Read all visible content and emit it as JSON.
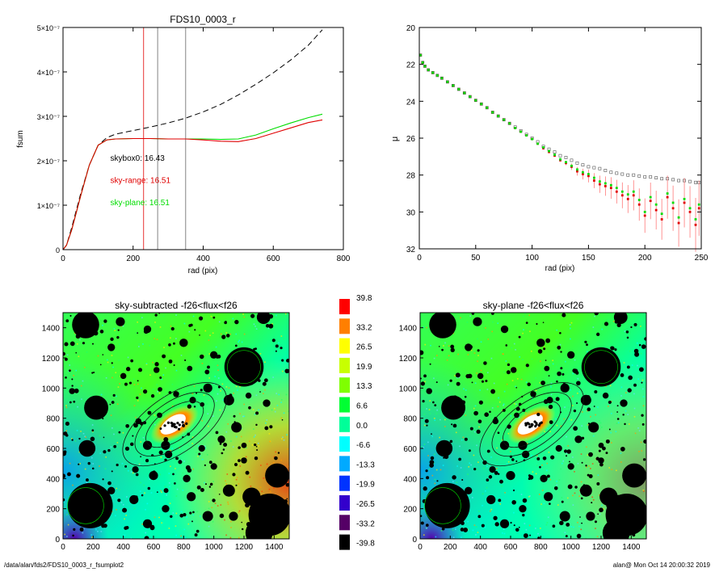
{
  "footer": {
    "path": "/data/alan/fds2/FDS10_0003_r_fsumplot2",
    "stamp": "alan@  Mon Oct 14 20:00:32 2019"
  },
  "colors": {
    "dashed": "#000000",
    "sky_range": "#e00000",
    "sky_plane": "#00dd00",
    "curve": "#8a5a00",
    "skybox_marker": "#666666",
    "blob": "#000000"
  },
  "chart_data": [
    {
      "type": "line",
      "title": "FDS10_0003_r",
      "xlabel": "rad (pix)",
      "ylabel": "fsum",
      "xlim": [
        0,
        800
      ],
      "ylim": [
        0,
        5e-07
      ],
      "xticks": [
        0,
        200,
        400,
        600,
        800
      ],
      "yticks": [
        {
          "v": 0,
          "label": "0"
        },
        {
          "v": 1e-07,
          "label": "1×10⁻⁷"
        },
        {
          "v": 2e-07,
          "label": "2×10⁻⁷"
        },
        {
          "v": 3e-07,
          "label": "3×10⁻⁷"
        },
        {
          "v": 4e-07,
          "label": "4×10⁻⁷"
        },
        {
          "v": 5e-07,
          "label": "5×10⁻⁷"
        }
      ],
      "vlines": [
        {
          "x": 230,
          "color": "red"
        },
        {
          "x": 270,
          "color": "gray"
        },
        {
          "x": 350,
          "color": "gray"
        }
      ],
      "annotations": [
        {
          "text": "skybox0: 16.43",
          "color": "black",
          "x": 135,
          "y": 2e-07
        },
        {
          "text": "sky-range: 16.51",
          "color": "red",
          "x": 135,
          "y": 1.5e-07
        },
        {
          "text": "sky-plane: 16.51",
          "color": "green",
          "x": 135,
          "y": 1e-07
        }
      ],
      "series": [
        {
          "style": "dashed",
          "x": [
            0,
            10,
            25,
            50,
            75,
            100,
            125,
            150,
            200,
            250,
            300,
            350,
            400,
            450,
            500,
            550,
            600,
            650,
            700,
            740
          ],
          "y": [
            0,
            1e-08,
            5e-08,
            1.25e-07,
            1.9e-07,
            2.35e-07,
            2.52e-07,
            2.6e-07,
            2.68e-07,
            2.76e-07,
            2.85e-07,
            2.96e-07,
            3.1e-07,
            3.27e-07,
            3.48e-07,
            3.72e-07,
            3.98e-07,
            4.27e-07,
            4.6e-07,
            4.95e-07
          ]
        },
        {
          "style": "sky_plane",
          "x": [
            0,
            10,
            25,
            50,
            75,
            100,
            125,
            150,
            200,
            250,
            300,
            350,
            400,
            450,
            500,
            550,
            600,
            650,
            700,
            740
          ],
          "y": [
            0,
            1e-08,
            4.5e-08,
            1.2e-07,
            1.9e-07,
            2.35e-07,
            2.47e-07,
            2.49e-07,
            2.5e-07,
            2.5e-07,
            2.49e-07,
            2.49e-07,
            2.49e-07,
            2.48e-07,
            2.49e-07,
            2.58e-07,
            2.72e-07,
            2.85e-07,
            2.97e-07,
            3.05e-07
          ]
        },
        {
          "style": "sky_range",
          "x": [
            0,
            10,
            25,
            50,
            75,
            100,
            125,
            150,
            200,
            250,
            300,
            350,
            400,
            450,
            500,
            550,
            600,
            650,
            700,
            740
          ],
          "y": [
            0,
            1e-08,
            4.5e-08,
            1.2e-07,
            1.9e-07,
            2.35e-07,
            2.47e-07,
            2.49e-07,
            2.5e-07,
            2.5e-07,
            2.49e-07,
            2.49e-07,
            2.47e-07,
            2.44e-07,
            2.43e-07,
            2.5e-07,
            2.62e-07,
            2.74e-07,
            2.86e-07,
            2.92e-07
          ]
        }
      ]
    },
    {
      "type": "scatter",
      "xlabel": "rad (pix)",
      "ylabel": "μ",
      "xlim": [
        0,
        250
      ],
      "ylim": [
        32,
        20
      ],
      "xticks": [
        0,
        50,
        100,
        150,
        200,
        250
      ],
      "yticks": [
        20,
        22,
        24,
        26,
        28,
        30,
        32
      ],
      "series": [
        {
          "name": "",
          "color": "gray",
          "x": [
            1,
            3,
            5,
            8,
            12,
            16,
            20,
            25,
            30,
            35,
            40,
            45,
            50,
            55,
            60,
            65,
            70,
            75,
            80,
            85,
            90,
            95,
            100,
            105,
            110,
            115,
            120,
            125,
            130,
            135,
            140,
            145,
            150,
            155,
            160,
            165,
            170,
            175,
            180,
            185,
            190,
            195,
            200,
            205,
            210,
            215,
            220,
            225,
            230,
            235,
            240,
            245,
            248
          ],
          "y": [
            21.5,
            21.9,
            22.1,
            22.3,
            22.45,
            22.6,
            22.75,
            22.95,
            23.15,
            23.35,
            23.55,
            23.75,
            23.95,
            24.15,
            24.35,
            24.6,
            24.8,
            25.0,
            25.2,
            25.4,
            25.6,
            25.8,
            26.0,
            26.2,
            26.45,
            26.6,
            26.75,
            26.95,
            27.05,
            27.2,
            27.35,
            27.45,
            27.55,
            27.6,
            27.65,
            27.75,
            27.85,
            27.9,
            27.95,
            28.0,
            28.0,
            28.05,
            28.1,
            28.1,
            28.15,
            28.2,
            28.2,
            28.25,
            28.3,
            28.3,
            28.35,
            28.4,
            28.4
          ]
        },
        {
          "name": "",
          "color": "red",
          "x": [
            1,
            3,
            5,
            8,
            12,
            16,
            20,
            25,
            30,
            35,
            40,
            45,
            50,
            55,
            60,
            65,
            70,
            75,
            80,
            85,
            90,
            95,
            100,
            105,
            110,
            115,
            120,
            125,
            130,
            135,
            140,
            145,
            150,
            155,
            160,
            165,
            170,
            175,
            180,
            185,
            190,
            195,
            200,
            205,
            210,
            215,
            220,
            225,
            230,
            235,
            240,
            245,
            248
          ],
          "y": [
            21.5,
            21.9,
            22.1,
            22.3,
            22.45,
            22.6,
            22.75,
            22.95,
            23.15,
            23.35,
            23.55,
            23.75,
            23.95,
            24.15,
            24.35,
            24.6,
            24.8,
            25.0,
            25.2,
            25.45,
            25.65,
            25.85,
            26.05,
            26.3,
            26.55,
            26.75,
            26.95,
            27.2,
            27.35,
            27.55,
            27.8,
            27.95,
            28.05,
            28.3,
            28.5,
            28.6,
            28.7,
            28.9,
            29.1,
            29.3,
            29.1,
            29.6,
            30.2,
            29.4,
            29.9,
            30.4,
            29.2,
            29.8,
            30.6,
            29.5,
            30.0,
            30.7,
            29.8
          ]
        },
        {
          "name": "",
          "color": "green",
          "x": [
            1,
            3,
            5,
            8,
            12,
            16,
            20,
            25,
            30,
            35,
            40,
            45,
            50,
            55,
            60,
            65,
            70,
            75,
            80,
            85,
            90,
            95,
            100,
            105,
            110,
            115,
            120,
            125,
            130,
            135,
            140,
            145,
            150,
            155,
            160,
            165,
            170,
            175,
            180,
            185,
            190,
            195,
            200,
            205,
            210,
            215,
            220,
            225,
            230,
            235,
            240,
            245,
            248
          ],
          "y": [
            21.5,
            21.9,
            22.1,
            22.3,
            22.45,
            22.6,
            22.75,
            22.95,
            23.15,
            23.35,
            23.55,
            23.75,
            23.95,
            24.15,
            24.35,
            24.6,
            24.8,
            25.0,
            25.2,
            25.45,
            25.65,
            25.85,
            26.05,
            26.3,
            26.5,
            26.7,
            26.9,
            27.15,
            27.3,
            27.5,
            27.7,
            27.85,
            27.95,
            28.15,
            28.35,
            28.45,
            28.55,
            28.7,
            28.9,
            29.05,
            28.9,
            29.35,
            30.0,
            29.2,
            29.6,
            30.1,
            29.0,
            29.5,
            30.3,
            29.3,
            29.8,
            30.4,
            29.6
          ]
        }
      ]
    },
    {
      "type": "heatmap",
      "title": "sky-subtracted -f26<flux<f26",
      "xlim": [
        0,
        1500
      ],
      "ylim": [
        0,
        1500
      ],
      "xticks": [
        0,
        200,
        400,
        600,
        800,
        1000,
        1200,
        1400
      ],
      "yticks": [
        0,
        200,
        400,
        600,
        800,
        1000,
        1200,
        1400
      ]
    },
    {
      "type": "heatmap",
      "title": "sky-plane -f26<flux<f26",
      "xlim": [
        0,
        1500
      ],
      "ylim": [
        0,
        1500
      ],
      "xticks": [
        0,
        200,
        400,
        600,
        800,
        1000,
        1200,
        1400
      ],
      "yticks": [
        0,
        200,
        400,
        600,
        800,
        1000,
        1200,
        1400
      ]
    },
    {
      "type": "table",
      "title": "",
      "colorbar": [
        {
          "label": "39.8",
          "color": "#ff0000"
        },
        {
          "label": "33.2",
          "color": "#ff7f00"
        },
        {
          "label": "26.5",
          "color": "#ffff00"
        },
        {
          "label": "19.9",
          "color": "#c8ff00"
        },
        {
          "label": "13.3",
          "color": "#7fff00"
        },
        {
          "label": "6.6",
          "color": "#00ff33"
        },
        {
          "label": "0.0",
          "color": "#00ff99"
        },
        {
          "label": "-6.6",
          "color": "#00ffff"
        },
        {
          "label": "-13.3",
          "color": "#00aaff"
        },
        {
          "label": "-19.9",
          "color": "#0033ff"
        },
        {
          "label": "-26.5",
          "color": "#3300cc"
        },
        {
          "label": "-33.2",
          "color": "#550066"
        },
        {
          "label": "-39.8",
          "color": "#000000"
        }
      ]
    }
  ]
}
